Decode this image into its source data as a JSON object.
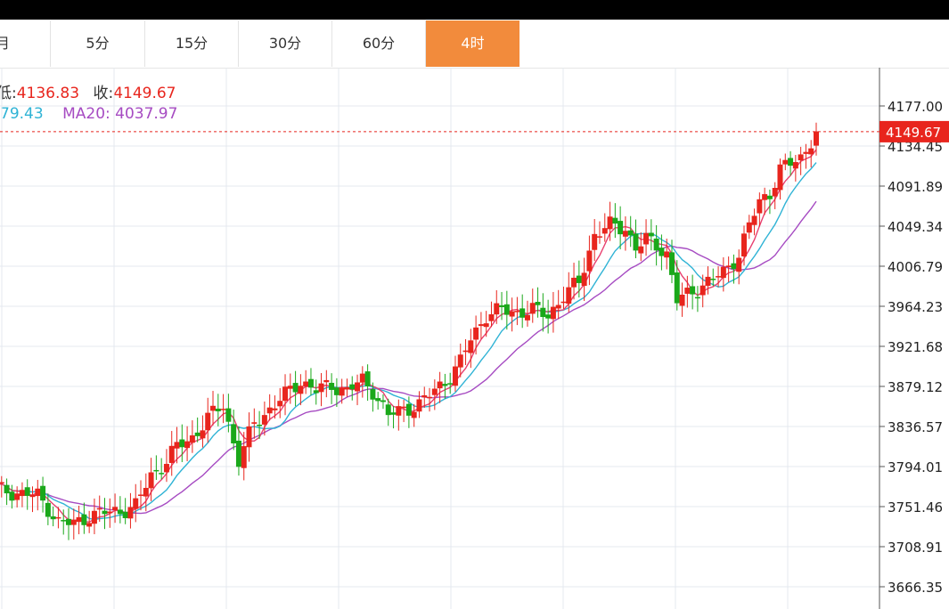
{
  "tabs": [
    {
      "label": "月"
    },
    {
      "label": "5分"
    },
    {
      "label": "15分"
    },
    {
      "label": "30分"
    },
    {
      "label": "60分"
    },
    {
      "label": "4时",
      "active": true
    }
  ],
  "legend": {
    "low_label": "低:",
    "low_value": "4136.83",
    "close_label": "收:",
    "close_value": "4149.67",
    "ma10_value": "79.43",
    "ma20_label": "MA20:",
    "ma20_value": "4037.97"
  },
  "colors": {
    "up": "#e8251d",
    "down": "#1aa81a",
    "ma5": "#e83f6f",
    "ma10": "#2fb3d5",
    "ma20": "#a64bc2",
    "active_tab": "#f28b3c",
    "grid": "#e4e9ef"
  },
  "chart_data": {
    "type": "candlestick",
    "y_ticks": [
      "4177.00",
      "4134.45",
      "4091.89",
      "4049.34",
      "4006.79",
      "3964.23",
      "3921.68",
      "3879.12",
      "3836.57",
      "3794.01",
      "3751.46",
      "3708.91",
      "3666.35"
    ],
    "y_tick_values": [
      4177.0,
      4134.45,
      4091.89,
      4049.34,
      4006.79,
      3964.23,
      3921.68,
      3879.12,
      3836.57,
      3794.01,
      3751.46,
      3708.91,
      3666.35
    ],
    "ylim": [
      3655,
      4200
    ],
    "last_price": "4149.67",
    "anchors": [
      [
        0,
        3770
      ],
      [
        4,
        3766
      ],
      [
        8,
        3763
      ],
      [
        10,
        3750
      ],
      [
        12,
        3735
      ],
      [
        15,
        3733
      ],
      [
        18,
        3742
      ],
      [
        21,
        3745
      ],
      [
        24,
        3747
      ],
      [
        27,
        3752
      ],
      [
        30,
        3785
      ],
      [
        33,
        3800
      ],
      [
        35,
        3815
      ],
      [
        38,
        3825
      ],
      [
        41,
        3845
      ],
      [
        44,
        3860
      ],
      [
        47,
        3800
      ],
      [
        50,
        3840
      ],
      [
        53,
        3855
      ],
      [
        56,
        3870
      ],
      [
        59,
        3885
      ],
      [
        62,
        3875
      ],
      [
        65,
        3880
      ],
      [
        68,
        3875
      ],
      [
        71,
        3885
      ],
      [
        73,
        3875
      ],
      [
        76,
        3848
      ],
      [
        79,
        3855
      ],
      [
        82,
        3860
      ],
      [
        85,
        3875
      ],
      [
        88,
        3890
      ],
      [
        90,
        3905
      ],
      [
        92,
        3930
      ],
      [
        95,
        3955
      ],
      [
        98,
        3960
      ],
      [
        101,
        3958
      ],
      [
        104,
        3960
      ],
      [
        107,
        3955
      ],
      [
        110,
        3975
      ],
      [
        113,
        3990
      ],
      [
        116,
        4040
      ],
      [
        119,
        4050
      ],
      [
        122,
        4048
      ],
      [
        124,
        4025
      ],
      [
        126,
        4035
      ],
      [
        128,
        4030
      ],
      [
        130,
        4020
      ],
      [
        132,
        3970
      ],
      [
        135,
        3980
      ],
      [
        138,
        3990
      ],
      [
        141,
        4000
      ],
      [
        144,
        4020
      ],
      [
        146,
        4050
      ],
      [
        148,
        4075
      ],
      [
        150,
        4085
      ],
      [
        152,
        4110
      ],
      [
        154,
        4115
      ],
      [
        156,
        4122
      ],
      [
        159,
        4150
      ]
    ],
    "ma10_visible_value": "79.43"
  }
}
